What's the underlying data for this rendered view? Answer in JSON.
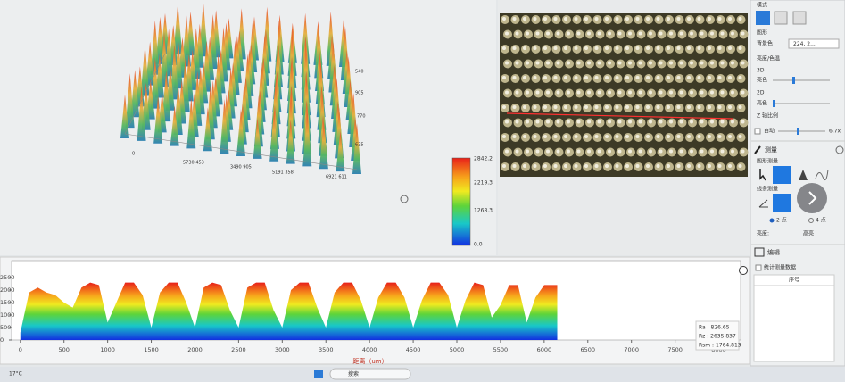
{
  "sidebar": {
    "mode": "模式",
    "graphics": "图形",
    "background": "背景色",
    "background_value": "224, 2...",
    "brightness": "亮度/色温",
    "d3": "3D",
    "d3_label": "亮色",
    "d2": "2D",
    "d2_label": "亮色",
    "z_scale": "Z 轴比例",
    "auto": "自动",
    "auto_value": "6.7x",
    "measure": "测量",
    "graph_measure": "图形测量",
    "line_measure": "线条测量",
    "two_point": "2 点",
    "four_point": "4 点",
    "left_label": "亮度:",
    "right_label": "高亮",
    "edit": "编辑",
    "stats_check": "统计测量数据",
    "index_col": "序号"
  },
  "view3d": {
    "labels": [
      "540",
      "905",
      "770",
      "635",
      "5730  453",
      "3490  905",
      "5191  358",
      "6921  611",
      "0"
    ]
  },
  "colorbar": {
    "labels": [
      "2842.2",
      "2219.3",
      "1268.3",
      "0.0"
    ]
  },
  "taskbar": {
    "search": "搜索",
    "weather": "17°C"
  },
  "chart_data": {
    "type": "area",
    "x_label": "距离（um）",
    "x": [
      0,
      100,
      200,
      300,
      400,
      500,
      600,
      700,
      800,
      900,
      1000,
      1100,
      1200,
      1300,
      1400,
      1500,
      1600,
      1700,
      1800,
      1900,
      2000,
      2100,
      2200,
      2300,
      2400,
      2500,
      2600,
      2700,
      2800,
      2900,
      3000,
      3100,
      3200,
      3300,
      3400,
      3500,
      3600,
      3700,
      3800,
      3900,
      4000,
      4100,
      4200,
      4300,
      4400,
      4500,
      4600,
      4700,
      4800,
      4900,
      5000,
      5100,
      5200,
      5300,
      5400,
      5500,
      5600,
      5700,
      5800,
      5900,
      6000,
      6100,
      6150
    ],
    "values": [
      300,
      1900,
      2100,
      1900,
      1800,
      1500,
      1300,
      2100,
      2300,
      2200,
      700,
      1500,
      2300,
      2300,
      1800,
      500,
      1900,
      2300,
      2300,
      1500,
      500,
      2100,
      2300,
      2200,
      1200,
      500,
      2100,
      2300,
      2300,
      1200,
      500,
      2000,
      2300,
      2300,
      1300,
      500,
      1900,
      2300,
      2300,
      1600,
      500,
      1700,
      2300,
      2300,
      1700,
      500,
      1600,
      2300,
      2300,
      1800,
      500,
      1600,
      2300,
      2200,
      900,
      1400,
      2200,
      2200,
      700,
      1700,
      2200,
      2200,
      2200
    ],
    "xlim": [
      -100,
      8250
    ],
    "ylim": [
      0,
      3000
    ],
    "xticks": [
      0,
      500,
      1000,
      1500,
      2000,
      2500,
      3000,
      3500,
      4000,
      4500,
      5000,
      5500,
      6000,
      6500,
      7000,
      7500,
      8000
    ],
    "yticks": [
      0,
      500,
      1000,
      1500,
      2000,
      2500
    ],
    "stats": [
      "Ra  :  826.65",
      "Rz  :  2635.837",
      "Rsm :  1764.813"
    ]
  }
}
